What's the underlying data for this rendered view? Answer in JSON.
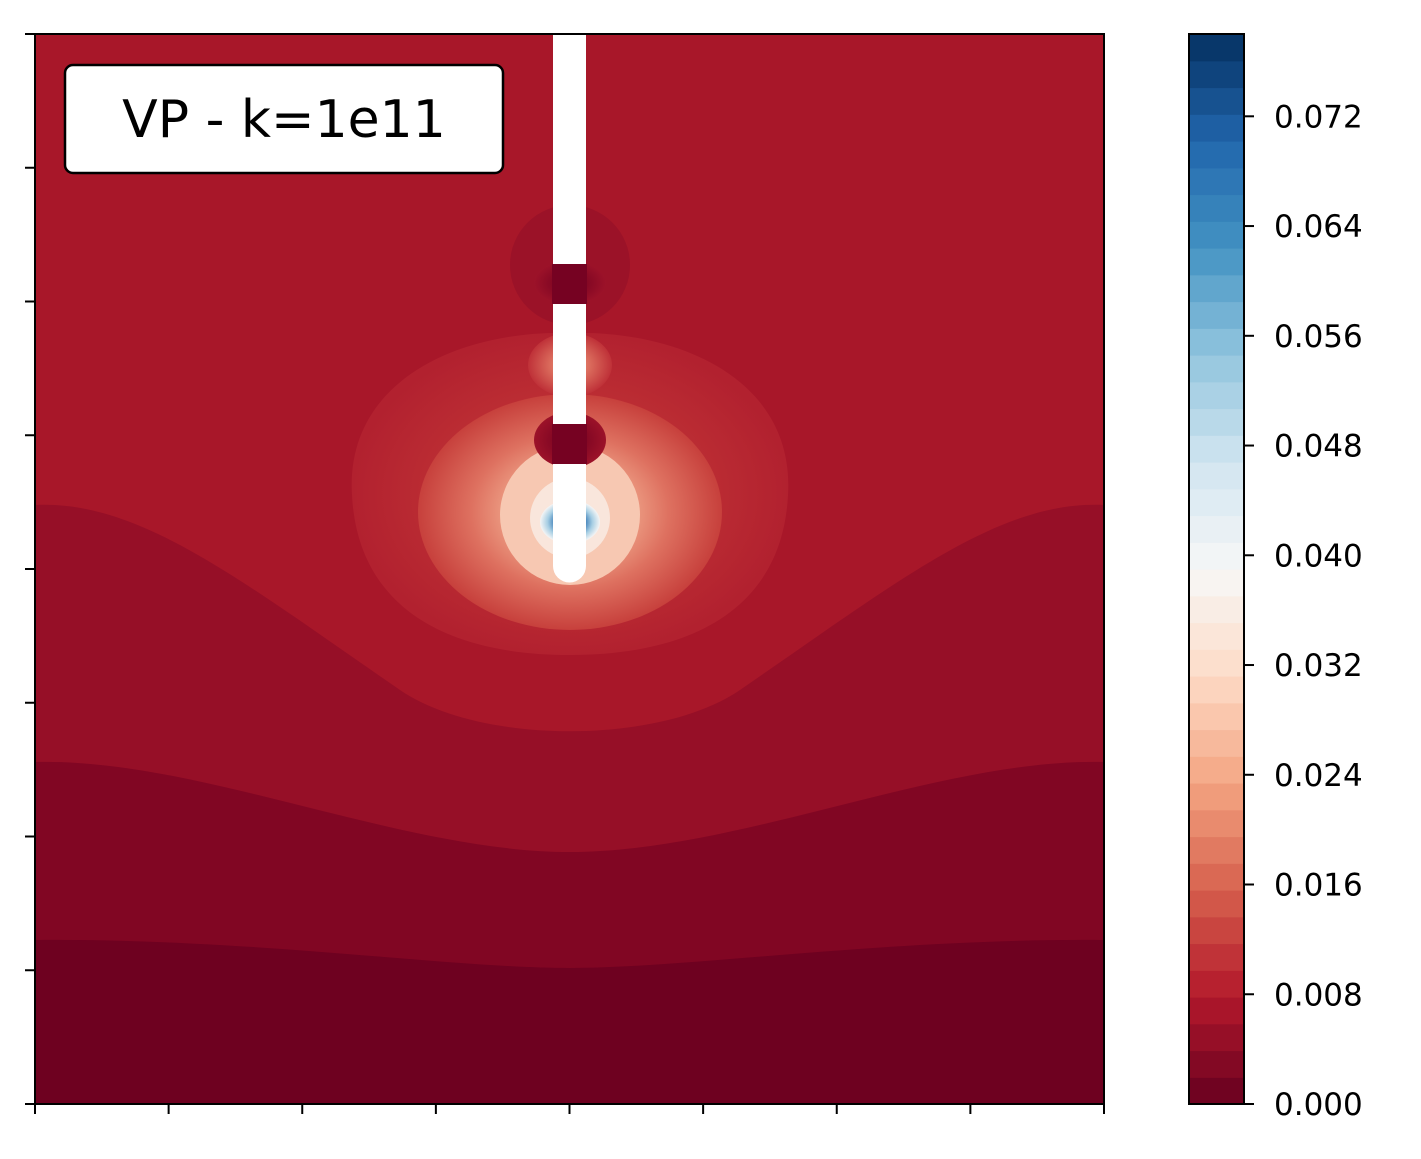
{
  "chart_data": {
    "type": "heatmap",
    "title": "",
    "xlabel": "",
    "ylabel": "",
    "annotation": "VP - k=1e11",
    "colormap": "RdBu",
    "colorbar": {
      "min": 0.0,
      "max": 0.078,
      "levels": 40,
      "tick_values": [
        0.0,
        0.008,
        0.016,
        0.024,
        0.032,
        0.04,
        0.048,
        0.056,
        0.064,
        0.072
      ],
      "tick_labels": [
        "0.000",
        "0.008",
        "0.016",
        "0.024",
        "0.032",
        "0.040",
        "0.048",
        "0.056",
        "0.064",
        "0.072"
      ]
    },
    "field_colors": {
      "background_level": "#a81729",
      "band_1": "#960f27",
      "band_2": "#810623",
      "band_3": "#6e0120"
    },
    "x_ticks": 9,
    "y_ticks": 9,
    "x_tick_labels_shown": false,
    "y_tick_labels_shown": false
  }
}
